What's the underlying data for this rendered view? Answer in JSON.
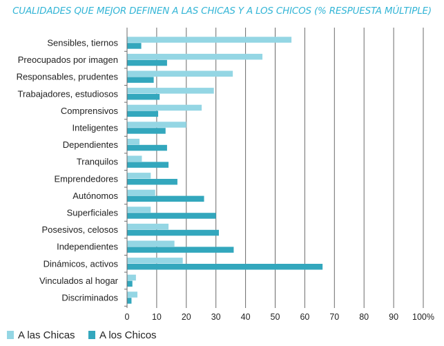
{
  "chart_data": {
    "type": "bar",
    "orientation": "horizontal",
    "title": "CUALIDADES QUE MEJOR DEFINEN A LAS CHICAS Y A LOS CHICOS (% RESPUESTA MÚLTIPLE)",
    "categories": [
      "Sensibles, tiernos",
      "Preocupados por imagen",
      "Responsables, prudentes",
      "Trabajadores, estudiosos",
      "Comprensivos",
      "Inteligentes",
      "Dependientes",
      "Tranquilos",
      "Emprendedores",
      "Autónomos",
      "Superficiales",
      "Posesivos, celosos",
      "Independientes",
      "Dinámicos, activos",
      "Vinculados al hogar",
      "Discriminados"
    ],
    "series": [
      {
        "name": "A las Chicas",
        "color": "#94d6e4",
        "values": [
          55.5,
          45.7,
          35.7,
          29.3,
          25.2,
          20.0,
          4.2,
          5.0,
          8.0,
          9.5,
          8.0,
          14.0,
          16.0,
          18.8,
          3.0,
          3.5
        ]
      },
      {
        "name": "A los Chicos",
        "color": "#33a7bd",
        "values": [
          4.8,
          13.5,
          9.0,
          11.0,
          10.5,
          13.0,
          13.5,
          14.0,
          17.0,
          26.0,
          30.0,
          31.0,
          36.0,
          66.0,
          1.8,
          1.5
        ]
      }
    ],
    "xlim": [
      0,
      100
    ],
    "xticks": [
      "0",
      "10",
      "20",
      "30",
      "40",
      "50",
      "60",
      "70",
      "80",
      "90",
      "100%"
    ],
    "grid": "vertical",
    "legend_position": "bottom-left"
  }
}
